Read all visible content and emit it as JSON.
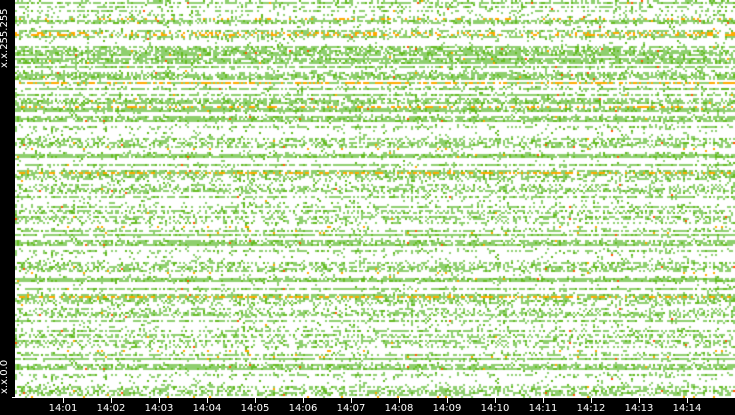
{
  "chart_data": {
    "type": "heatmap",
    "title": "",
    "x_ticks": [
      "14:01",
      "14:02",
      "14:03",
      "14:04",
      "14:05",
      "14:06",
      "14:07",
      "14:08",
      "14:09",
      "14:10",
      "14:11",
      "14:12",
      "14:13",
      "14:14"
    ],
    "y_labels": {
      "bottom": "x.x.0.0",
      "top": "x.x.255.255"
    },
    "colors": {
      "background": "#ffffff",
      "low": "#8fcf6f",
      "medium": "#66bb22",
      "high": "#ffaa00",
      "peak": "#ff5500",
      "axis": "#000000",
      "text": "#ffffff"
    },
    "grid": false
  }
}
